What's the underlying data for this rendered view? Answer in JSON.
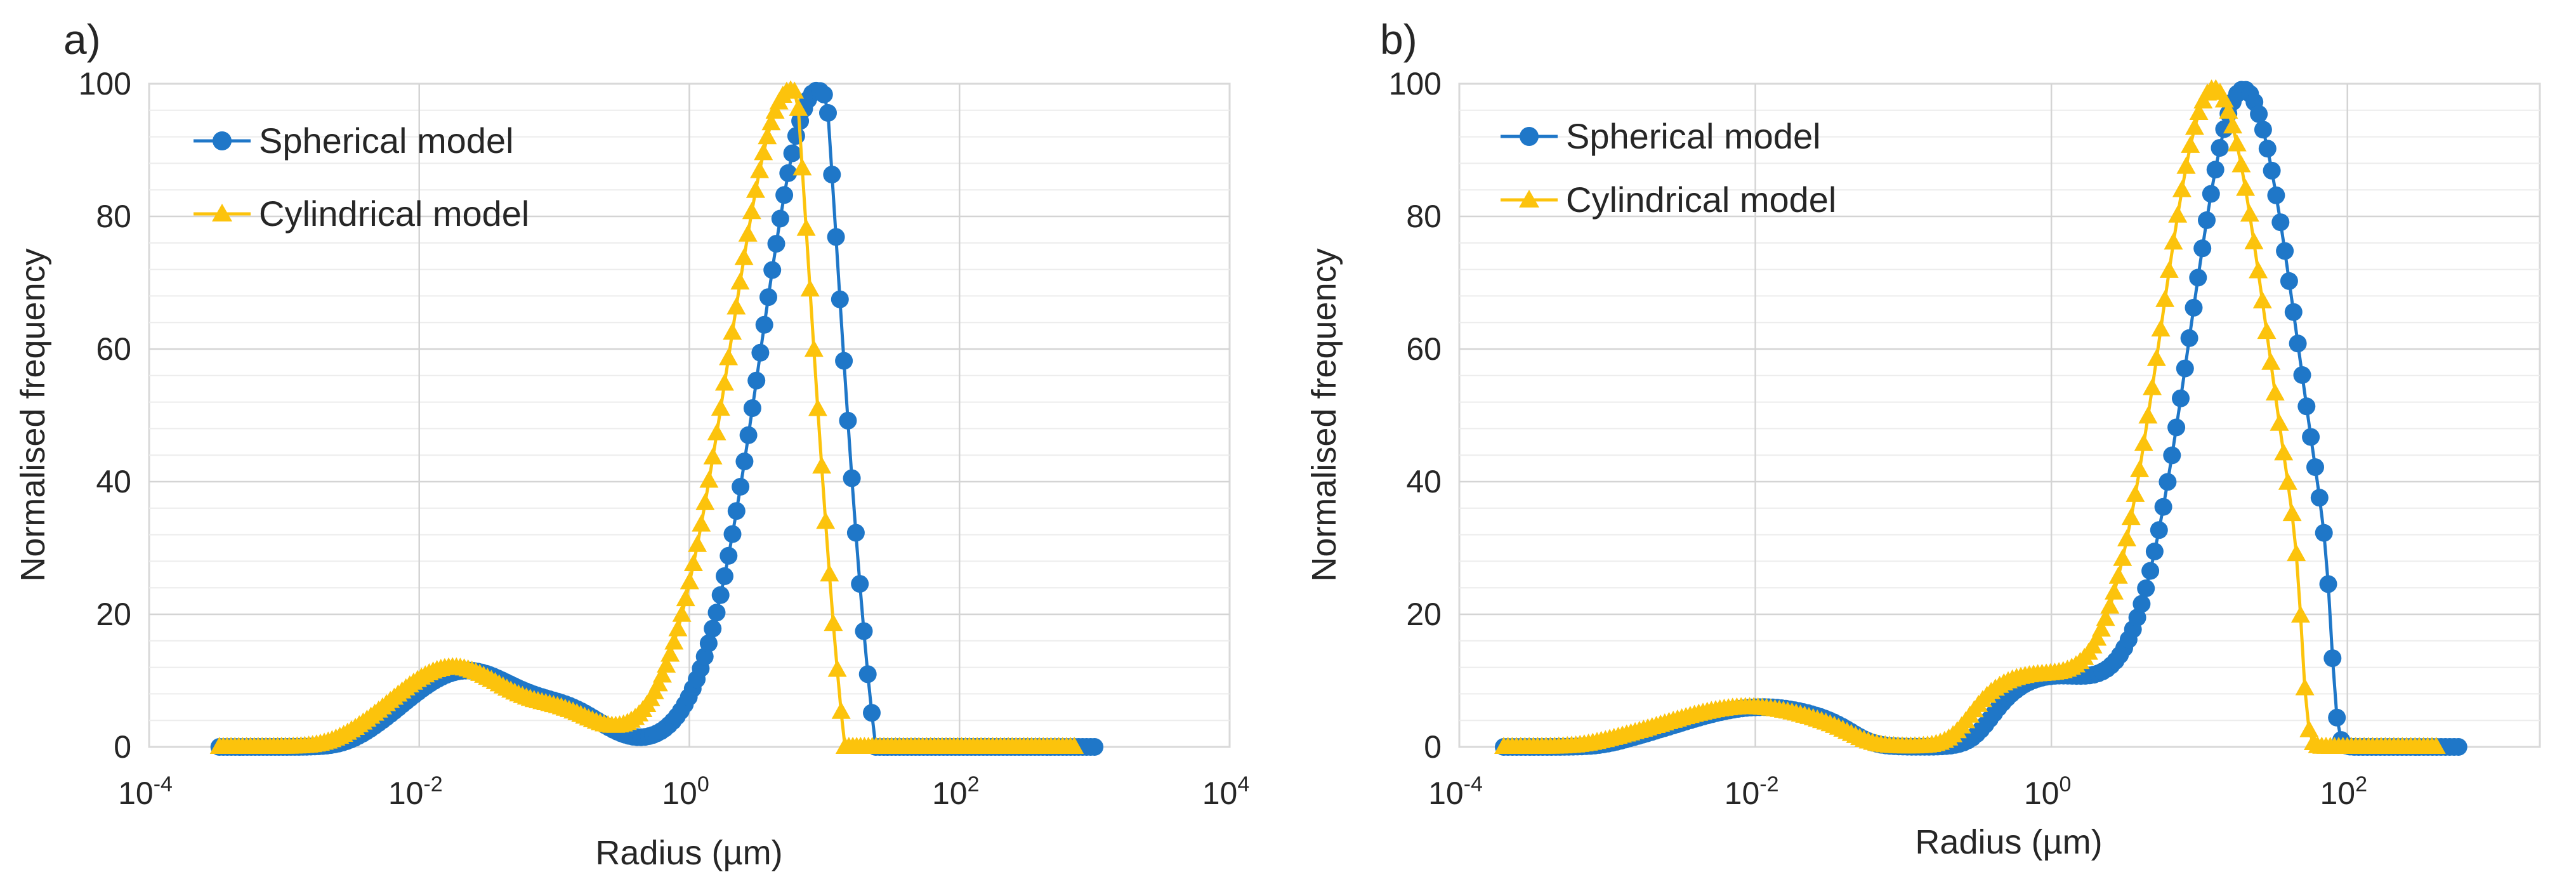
{
  "colors": {
    "spherical": "#1f77c8",
    "cylindrical": "#fcc30c",
    "plot_border": "#d9d9d9",
    "major_grid": "#d4d4d4",
    "minor_grid": "#ececec",
    "text": "#262626"
  },
  "chart_data": [
    {
      "type": "line",
      "panel_label": "a)",
      "xlabel": "Radius (µm)",
      "ylabel": "Normalised frequency",
      "xscale": "log",
      "xlim_exp": [
        -4,
        4
      ],
      "ylim": [
        0,
        100
      ],
      "x_tick_labels": [
        {
          "exp": -4,
          "base": "10",
          "sup": "-4"
        },
        {
          "exp": -2,
          "base": "10",
          "sup": "-2"
        },
        {
          "exp": 0,
          "base": "10",
          "sup": "0"
        },
        {
          "exp": 2,
          "base": "10",
          "sup": "2"
        },
        {
          "exp": 4,
          "base": "10",
          "sup": "4"
        }
      ],
      "y_ticks": [
        0,
        20,
        40,
        60,
        80,
        100
      ],
      "legend_position": "top-left",
      "series": [
        {
          "name": "Spherical model",
          "marker": "circle",
          "x_range_exp": [
            -3.48,
            3.0
          ],
          "components": [
            {
              "center_exp": -1.65,
              "sigma": 0.45,
              "amp": 11.5
            },
            {
              "center_exp": -0.85,
              "sigma": 0.25,
              "amp": 3.5
            },
            {
              "center_exp": 0.95,
              "sigma": 0.42,
              "amp": 99.0
            }
          ],
          "cutoff_exp": -2.55,
          "rise_width": 0.12,
          "drop_start_exp": 1.02,
          "drop_end_exp": 1.38
        },
        {
          "name": "Cylindrical model",
          "marker": "triangle",
          "x_range_exp": [
            -3.48,
            2.85
          ],
          "components": [
            {
              "center_exp": -1.75,
              "sigma": 0.45,
              "amp": 12.0
            },
            {
              "center_exp": -0.9,
              "sigma": 0.25,
              "amp": 3.5
            },
            {
              "center_exp": 0.75,
              "sigma": 0.45,
              "amp": 99.0
            }
          ],
          "cutoff_exp": -2.7,
          "rise_width": 0.12,
          "drop_start_exp": 0.8,
          "drop_end_exp": 1.15
        }
      ]
    },
    {
      "type": "line",
      "panel_label": "b)",
      "xlabel": "Radius (µm)",
      "ylabel": "Normalised frequency",
      "xscale": "log",
      "xlim_exp": [
        -4,
        3.3
      ],
      "ylim": [
        0,
        100
      ],
      "x_tick_labels": [
        {
          "exp": -4,
          "base": "10",
          "sup": "-4"
        },
        {
          "exp": -2,
          "base": "10",
          "sup": "-2"
        },
        {
          "exp": 0,
          "base": "10",
          "sup": "0"
        },
        {
          "exp": 2,
          "base": "10",
          "sup": "2"
        }
      ],
      "y_ticks": [
        0,
        20,
        40,
        60,
        80,
        100
      ],
      "legend_position": "top-left",
      "series": [
        {
          "name": "Spherical model",
          "marker": "circle",
          "x_range_exp": [
            -3.7,
            2.75
          ],
          "components": [
            {
              "center_exp": -1.95,
              "sigma": 0.55,
              "amp": 6.0
            },
            {
              "center_exp": 0.0,
              "sigma": 0.45,
              "amp": 10.5
            },
            {
              "center_exp": 1.3,
              "sigma": 0.37,
              "amp": 99.0
            }
          ],
          "gaps": [
            {
              "from_exp": -1.3,
              "to_exp": -0.45,
              "width": 0.08
            }
          ],
          "cutoff_exp": -3.0,
          "rise_width": 0.1,
          "cutoff_high_exp": 1.9,
          "high_width": 0.02
        },
        {
          "name": "Cylindrical model",
          "marker": "triangle",
          "x_range_exp": [
            -3.7,
            2.6
          ],
          "components": [
            {
              "center_exp": -2.05,
              "sigma": 0.55,
              "amp": 6.0
            },
            {
              "center_exp": -0.15,
              "sigma": 0.45,
              "amp": 10.5
            },
            {
              "center_exp": 1.1,
              "sigma": 0.37,
              "amp": 99.0
            }
          ],
          "gaps": [
            {
              "from_exp": -1.3,
              "to_exp": -0.6,
              "width": 0.08
            }
          ],
          "cutoff_exp": -3.15,
          "rise_width": 0.1,
          "cutoff_high_exp": 1.7,
          "high_width": 0.02
        }
      ]
    }
  ]
}
